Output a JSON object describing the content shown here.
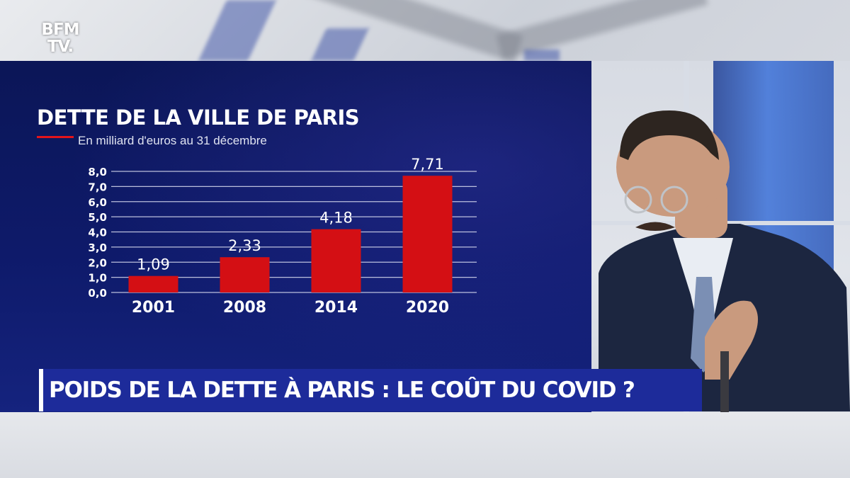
{
  "channel": {
    "logo_text_line1": "BFM",
    "logo_text_line2": "TV."
  },
  "chart_data": {
    "type": "bar",
    "title": "DETTE DE LA VILLE DE PARIS",
    "subtitle": "En milliard d'euros au 31 décembre",
    "categories": [
      "2001",
      "2008",
      "2014",
      "2020"
    ],
    "values": [
      1.09,
      2.33,
      4.18,
      7.71
    ],
    "value_labels": [
      "1,09",
      "2,33",
      "4,18",
      "7,71"
    ],
    "y_ticks": [
      "0,0",
      "1,0",
      "2,0",
      "3,0",
      "4,0",
      "5,0",
      "6,0",
      "7,0",
      "8,0"
    ],
    "ylim": [
      0,
      8
    ],
    "grid": true,
    "bar_color": "#d40f14"
  },
  "banner": {
    "headline": "POIDS DE LA DETTE À PARIS : LE COÛT DU COVID ?"
  },
  "colors": {
    "panel": "#0e1a6a",
    "accent_red": "#e3141b",
    "banner": "#1d2b9a"
  }
}
